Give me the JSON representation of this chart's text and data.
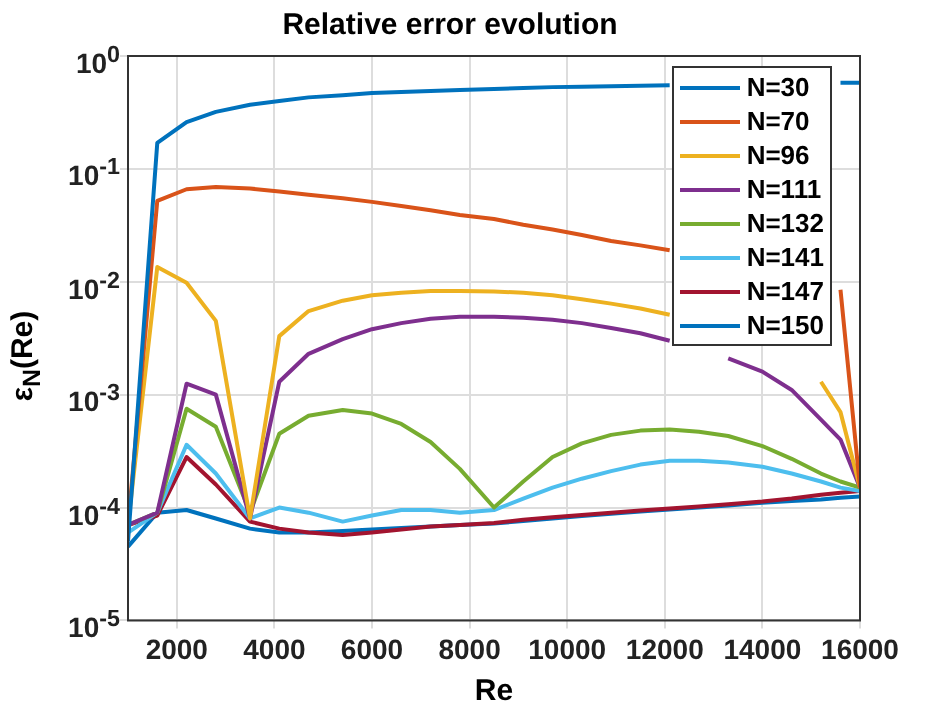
{
  "chart_data": {
    "type": "line",
    "title": "Relative error evolution",
    "xlabel": "Re",
    "ylabel": "ε$_{N}$(Re)",
    "x": [
      1000,
      1600,
      2200,
      2800,
      3500,
      4100,
      4700,
      5400,
      6000,
      6600,
      7200,
      7800,
      8500,
      9100,
      9700,
      10300,
      10900,
      11500,
      12100,
      12700,
      13300,
      14000,
      14600,
      15200,
      15600,
      16000
    ],
    "series": [
      {
        "name": "N=30",
        "color": "#0072bd",
        "values": [
          5e-05,
          0.17,
          0.26,
          0.32,
          0.37,
          0.4,
          0.43,
          0.45,
          0.47,
          0.48,
          0.49,
          0.5,
          0.51,
          0.52,
          0.53,
          0.535,
          0.54,
          0.545,
          0.55,
          null,
          null,
          null,
          null,
          null,
          0.58,
          0.58
        ]
      },
      {
        "name": "N=70",
        "color": "#d95319",
        "values": [
          7e-05,
          0.052,
          0.066,
          0.069,
          0.067,
          0.063,
          0.059,
          0.055,
          0.051,
          0.047,
          0.043,
          0.039,
          0.036,
          0.032,
          0.029,
          0.026,
          0.023,
          0.021,
          0.019,
          null,
          null,
          null,
          null,
          null,
          0.0085,
          0.00015
        ]
      },
      {
        "name": "N=96",
        "color": "#edb120",
        "values": [
          7e-05,
          0.0135,
          0.0098,
          0.0045,
          8e-05,
          0.0033,
          0.0055,
          0.0068,
          0.0076,
          0.008,
          0.0083,
          0.0083,
          0.0082,
          0.008,
          0.0076,
          0.007,
          0.0064,
          0.0058,
          0.0051,
          null,
          null,
          null,
          null,
          0.0013,
          0.0007,
          0.00015
        ]
      },
      {
        "name": "N=111",
        "color": "#7e2f8e",
        "values": [
          7e-05,
          9e-05,
          0.00125,
          0.001,
          8e-05,
          0.0013,
          0.0023,
          0.0031,
          0.0038,
          0.0043,
          0.0047,
          0.0049,
          0.0049,
          0.0048,
          0.0046,
          0.0043,
          0.0039,
          0.0035,
          0.003,
          null,
          0.0021,
          0.0016,
          0.0011,
          0.0006,
          0.0004,
          0.00015
        ]
      },
      {
        "name": "N=132",
        "color": "#77ac30",
        "values": [
          7e-05,
          9e-05,
          0.00075,
          0.00052,
          9e-05,
          0.00045,
          0.00065,
          0.00073,
          0.00068,
          0.00055,
          0.00038,
          0.00022,
          0.0001,
          0.00017,
          0.00028,
          0.00037,
          0.00044,
          0.00048,
          0.00049,
          0.00047,
          0.00043,
          0.00035,
          0.00027,
          0.0002,
          0.00017,
          0.00015
        ]
      },
      {
        "name": "N=141",
        "color": "#4dbeee",
        "values": [
          6e-05,
          9e-05,
          0.00036,
          0.0002,
          8e-05,
          0.0001,
          9e-05,
          7.5e-05,
          8.5e-05,
          9.5e-05,
          9.5e-05,
          9e-05,
          9.5e-05,
          0.00012,
          0.00015,
          0.00018,
          0.00021,
          0.00024,
          0.00026,
          0.00026,
          0.00025,
          0.00023,
          0.0002,
          0.00017,
          0.00015,
          0.00014
        ]
      },
      {
        "name": "N=147",
        "color": "#a2142f",
        "values": [
          7e-05,
          8.5e-05,
          0.00028,
          0.00016,
          7.5e-05,
          6.5e-05,
          6e-05,
          5.7e-05,
          6e-05,
          6.4e-05,
          6.8e-05,
          7e-05,
          7.3e-05,
          7.8e-05,
          8.2e-05,
          8.6e-05,
          9e-05,
          9.4e-05,
          9.8e-05,
          0.000102,
          0.000107,
          0.000113,
          0.00012,
          0.00013,
          0.000135,
          0.00014
        ]
      },
      {
        "name": "N=150",
        "color": "#0072bd",
        "values": [
          4.5e-05,
          9e-05,
          9.5e-05,
          8e-05,
          6.5e-05,
          6e-05,
          6e-05,
          6.2e-05,
          6.4e-05,
          6.6e-05,
          6.8e-05,
          7e-05,
          7.2e-05,
          7.6e-05,
          8e-05,
          8.4e-05,
          8.8e-05,
          9.2e-05,
          9.6e-05,
          0.0001,
          0.000104,
          0.00011,
          0.000114,
          0.000118,
          0.000122,
          0.000125
        ]
      }
    ],
    "xlim": [
      1000,
      16000
    ],
    "xticks": [
      2000,
      4000,
      6000,
      8000,
      10000,
      12000,
      14000,
      16000
    ],
    "ylim": [
      1e-05,
      1
    ],
    "yticks": [
      {
        "value": 1e-05,
        "label": "10$^{-5}$"
      },
      {
        "value": 0.0001,
        "label": "10$^{-4}$"
      },
      {
        "value": 0.001,
        "label": "10$^{-3}$"
      },
      {
        "value": 0.01,
        "label": "10$^{-2}$"
      },
      {
        "value": 0.1,
        "label": "10$^{-1}$"
      },
      {
        "value": 1,
        "label": "10$^{0}$"
      }
    ],
    "log": "y",
    "grid": true,
    "legend": "top right",
    "marker": "none",
    "line_style": "solid"
  }
}
